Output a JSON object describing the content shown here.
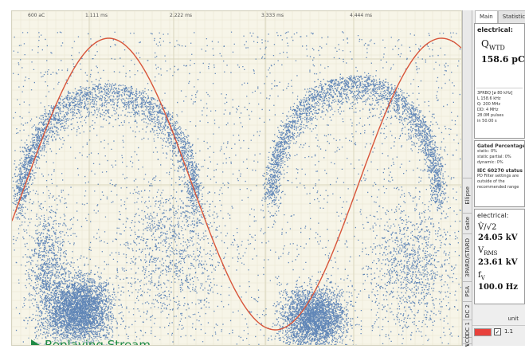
{
  "plot": {
    "y_top_label": "600 aC",
    "time_ticks": [
      "1.111 ms",
      "2.222 ms",
      "3.333 ms",
      "4.444 ms"
    ],
    "status_text": "Replaying Stream...",
    "colors": {
      "sine": "#d8553a",
      "points": "#2f62a8",
      "background": "#f7f5e8"
    }
  },
  "vertical_tabs": [
    "Ellipse",
    "Gate",
    "3PARD/STARD",
    "PSA",
    "DC 2",
    "DC 1",
    "VCO",
    "I"
  ],
  "panel_tabs": [
    "Main",
    "Statistics"
  ],
  "electrical_1": {
    "label": "electrical:",
    "symbol": "Q",
    "subscript": "WTD",
    "value": "158.6 pC",
    "info_lines": [
      "3PRBQ [ø 80 kHz]",
      "L  158.6 kHz",
      "Q: 200 MHz",
      "DD: 4 MHz",
      "28.0M pulses",
      "in 50.00 s"
    ]
  },
  "gated": {
    "title": "Gated Percentages",
    "rows": [
      "static:     0%",
      "static partial: 0%",
      "dynamic:    0%"
    ],
    "iec_title": "IEC 60270 status",
    "iec_lines": [
      "PD Filter settings are",
      "outside of the",
      "recommended range"
    ]
  },
  "electrical_2": {
    "label": "electrical:",
    "v_sym": "V̂/√2",
    "v_val": "24.05 kV",
    "rms_sym": "V",
    "rms_sub": "RMS",
    "rms_val": "23.61 kV",
    "f_sym": "f",
    "f_sub": "V",
    "f_val": "100.0 Hz"
  },
  "legend": {
    "header": "unit",
    "check_mark": "✓",
    "item_label": "1.1",
    "swatch_color": "#e8413c"
  }
}
